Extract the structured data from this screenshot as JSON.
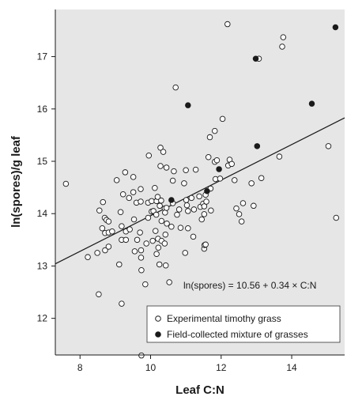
{
  "chart_data": {
    "type": "scatter",
    "title": "",
    "xlabel": "Leaf C:N",
    "ylabel": "ln(spores)/g leaf",
    "xlim": [
      7.3,
      15.5
    ],
    "ylim": [
      11.3,
      17.9
    ],
    "xticks": [
      8,
      10,
      12,
      14
    ],
    "yticks": [
      12,
      13,
      14,
      15,
      16,
      17
    ],
    "grid": false,
    "plot_background": "#e6e6e6",
    "legend_position": "bottom-right",
    "annotation": "ln(spores) = 10.56 + 0.34 × C:N",
    "regression": {
      "intercept": 10.56,
      "slope": 0.34
    },
    "series": [
      {
        "name": "Experimental timothy grass",
        "marker": "open-circle",
        "points": [
          [
            7.6,
            14.57
          ],
          [
            8.22,
            13.17
          ],
          [
            8.49,
            13.25
          ],
          [
            8.53,
            12.46
          ],
          [
            8.55,
            14.06
          ],
          [
            8.63,
            13.72
          ],
          [
            8.65,
            14.22
          ],
          [
            8.7,
            13.92
          ],
          [
            8.71,
            13.63
          ],
          [
            8.71,
            13.3
          ],
          [
            8.75,
            13.88
          ],
          [
            8.81,
            13.85
          ],
          [
            8.81,
            13.64
          ],
          [
            8.81,
            13.37
          ],
          [
            8.91,
            13.66
          ],
          [
            9.04,
            14.64
          ],
          [
            9.11,
            13.03
          ],
          [
            9.15,
            14.03
          ],
          [
            9.18,
            13.76
          ],
          [
            9.18,
            13.5
          ],
          [
            9.18,
            12.28
          ],
          [
            9.22,
            14.37
          ],
          [
            9.28,
            14.79
          ],
          [
            9.3,
            13.66
          ],
          [
            9.3,
            13.5
          ],
          [
            9.39,
            14.3
          ],
          [
            9.41,
            13.7
          ],
          [
            9.51,
            14.7
          ],
          [
            9.51,
            14.41
          ],
          [
            9.53,
            13.89
          ],
          [
            9.55,
            13.28
          ],
          [
            9.6,
            14.21
          ],
          [
            9.62,
            13.5
          ],
          [
            9.7,
            13.64
          ],
          [
            9.72,
            14.47
          ],
          [
            9.72,
            14.23
          ],
          [
            9.73,
            13.3
          ],
          [
            9.73,
            13.16
          ],
          [
            9.74,
            12.92
          ],
          [
            9.74,
            11.29
          ],
          [
            9.85,
            12.65
          ],
          [
            9.88,
            13.43
          ],
          [
            9.93,
            14.21
          ],
          [
            9.93,
            13.92
          ],
          [
            9.95,
            15.11
          ],
          [
            10.03,
            14.24
          ],
          [
            10.03,
            14.04
          ],
          [
            10.06,
            13.48
          ],
          [
            10.08,
            14.05
          ],
          [
            10.12,
            14.49
          ],
          [
            10.14,
            13.67
          ],
          [
            10.16,
            13.98
          ],
          [
            10.17,
            14.24
          ],
          [
            10.17,
            13.23
          ],
          [
            10.2,
            14.32
          ],
          [
            10.21,
            13.52
          ],
          [
            10.22,
            13.35
          ],
          [
            10.25,
            13.03
          ],
          [
            10.26,
            14.15
          ],
          [
            10.28,
            15.26
          ],
          [
            10.28,
            14.91
          ],
          [
            10.3,
            14.25
          ],
          [
            10.31,
            13.86
          ],
          [
            10.31,
            13.48
          ],
          [
            10.36,
            15.18
          ],
          [
            10.4,
            14.1
          ],
          [
            10.4,
            13.43
          ],
          [
            10.41,
            14.02
          ],
          [
            10.42,
            13.6
          ],
          [
            10.43,
            13.01
          ],
          [
            10.45,
            14.88
          ],
          [
            10.45,
            14.11
          ],
          [
            10.46,
            13.81
          ],
          [
            10.53,
            12.69
          ],
          [
            10.59,
            13.75
          ],
          [
            10.63,
            14.63
          ],
          [
            10.63,
            14.2
          ],
          [
            10.66,
            14.81
          ],
          [
            10.71,
            16.41
          ],
          [
            10.75,
            13.98
          ],
          [
            10.81,
            14.08
          ],
          [
            10.85,
            13.73
          ],
          [
            10.95,
            14.58
          ],
          [
            10.98,
            13.25
          ],
          [
            11.0,
            14.83
          ],
          [
            11.01,
            14.26
          ],
          [
            11.03,
            14.16
          ],
          [
            11.06,
            13.72
          ],
          [
            11.06,
            14.05
          ],
          [
            11.16,
            14.3
          ],
          [
            11.21,
            13.56
          ],
          [
            11.23,
            14.08
          ],
          [
            11.28,
            14.84
          ],
          [
            11.38,
            14.33
          ],
          [
            11.41,
            14.13
          ],
          [
            11.45,
            13.89
          ],
          [
            11.49,
            14.19
          ],
          [
            11.52,
            14.14
          ],
          [
            11.52,
            13.99
          ],
          [
            11.52,
            13.33
          ],
          [
            11.53,
            13.4
          ],
          [
            11.56,
            13.41
          ],
          [
            11.56,
            14.36
          ],
          [
            11.58,
            14.23
          ],
          [
            11.64,
            15.08
          ],
          [
            11.68,
            15.46
          ],
          [
            11.7,
            14.48
          ],
          [
            11.71,
            14.06
          ],
          [
            11.82,
            15.58
          ],
          [
            11.82,
            14.99
          ],
          [
            11.84,
            14.66
          ],
          [
            11.88,
            15.02
          ],
          [
            11.97,
            14.67
          ],
          [
            12.04,
            15.81
          ],
          [
            12.18,
            17.62
          ],
          [
            12.2,
            14.92
          ],
          [
            12.24,
            15.03
          ],
          [
            12.3,
            14.95
          ],
          [
            12.38,
            14.64
          ],
          [
            12.43,
            14.1
          ],
          [
            12.51,
            13.99
          ],
          [
            12.58,
            13.85
          ],
          [
            12.62,
            14.2
          ],
          [
            12.86,
            14.58
          ],
          [
            12.92,
            14.15
          ],
          [
            13.07,
            16.96
          ],
          [
            13.14,
            14.68
          ],
          [
            13.65,
            15.09
          ],
          [
            13.73,
            17.19
          ],
          [
            13.76,
            17.37
          ],
          [
            15.04,
            15.29
          ],
          [
            15.26,
            13.92
          ]
        ]
      },
      {
        "name": "Field-collected mixture of grasses",
        "marker": "filled-circle",
        "points": [
          [
            10.59,
            14.26
          ],
          [
            11.06,
            16.07
          ],
          [
            11.6,
            14.43
          ],
          [
            11.94,
            14.85
          ],
          [
            12.98,
            16.96
          ],
          [
            13.02,
            15.29
          ],
          [
            14.57,
            16.1
          ],
          [
            15.24,
            17.56
          ]
        ]
      }
    ]
  }
}
